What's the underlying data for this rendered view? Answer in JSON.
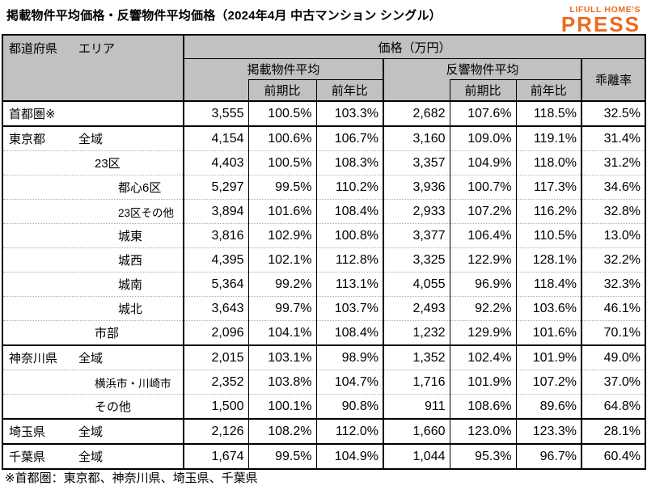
{
  "title": "掲載物件平均価格・反響物件平均価格（2024年4月 中古マンション シングル）",
  "logo": {
    "line1": "LIFULL HOME'S",
    "line2": "PRESS",
    "color": "#ed6a1c"
  },
  "footnote": "※首都圏：東京都、神奈川県、埼玉県、千葉県",
  "table": {
    "header": {
      "col_region": "都道府県",
      "col_area": "エリア",
      "price_group": "価格（万円）",
      "listed_group": "掲載物件平均",
      "response_group": "反響物件平均",
      "divergence": "乖離率",
      "mom": "前期比",
      "yoy": "前年比"
    },
    "header_bg": "#c1c1c1",
    "rows": [
      {
        "pref": "首都圏※",
        "area": "",
        "indent": 0,
        "group": true,
        "shrink": false,
        "values": [
          "3,555",
          "100.5%",
          "103.3%",
          "2,682",
          "107.6%",
          "118.5%",
          "32.5%"
        ]
      },
      {
        "pref": "東京都",
        "area": "全域",
        "indent": 1,
        "group": true,
        "shrink": false,
        "values": [
          "4,154",
          "100.6%",
          "106.7%",
          "3,160",
          "109.0%",
          "119.1%",
          "31.4%"
        ]
      },
      {
        "pref": "",
        "area": "23区",
        "indent": 2,
        "group": false,
        "shrink": false,
        "values": [
          "4,403",
          "100.5%",
          "108.3%",
          "3,357",
          "104.9%",
          "118.0%",
          "31.2%"
        ]
      },
      {
        "pref": "",
        "area": "都心6区",
        "indent": 3,
        "group": false,
        "shrink": false,
        "values": [
          "5,297",
          "99.5%",
          "110.2%",
          "3,936",
          "100.7%",
          "117.3%",
          "34.6%"
        ]
      },
      {
        "pref": "",
        "area": "23区その他",
        "indent": 3,
        "group": false,
        "shrink": true,
        "values": [
          "3,894",
          "101.6%",
          "108.4%",
          "2,933",
          "107.2%",
          "116.2%",
          "32.8%"
        ]
      },
      {
        "pref": "",
        "area": "城東",
        "indent": 3,
        "group": false,
        "shrink": false,
        "values": [
          "3,816",
          "102.9%",
          "100.8%",
          "3,377",
          "106.4%",
          "110.5%",
          "13.0%"
        ]
      },
      {
        "pref": "",
        "area": "城西",
        "indent": 3,
        "group": false,
        "shrink": false,
        "values": [
          "4,395",
          "102.1%",
          "112.8%",
          "3,325",
          "122.9%",
          "128.1%",
          "32.2%"
        ]
      },
      {
        "pref": "",
        "area": "城南",
        "indent": 3,
        "group": false,
        "shrink": false,
        "values": [
          "5,364",
          "99.2%",
          "113.1%",
          "4,055",
          "96.9%",
          "118.4%",
          "32.3%"
        ]
      },
      {
        "pref": "",
        "area": "城北",
        "indent": 3,
        "group": false,
        "shrink": false,
        "values": [
          "3,643",
          "99.7%",
          "103.7%",
          "2,493",
          "92.2%",
          "103.6%",
          "46.1%"
        ]
      },
      {
        "pref": "",
        "area": "市部",
        "indent": 2,
        "group": false,
        "shrink": false,
        "values": [
          "2,096",
          "104.1%",
          "108.4%",
          "1,232",
          "129.9%",
          "101.6%",
          "70.1%"
        ]
      },
      {
        "pref": "神奈川県",
        "area": "全域",
        "indent": 1,
        "group": true,
        "shrink": false,
        "values": [
          "2,015",
          "103.1%",
          "98.9%",
          "1,352",
          "102.4%",
          "101.9%",
          "49.0%"
        ]
      },
      {
        "pref": "",
        "area": "横浜市・川崎市",
        "indent": 2,
        "group": false,
        "shrink": true,
        "values": [
          "2,352",
          "103.8%",
          "104.7%",
          "1,716",
          "101.9%",
          "107.2%",
          "37.0%"
        ]
      },
      {
        "pref": "",
        "area": "その他",
        "indent": 2,
        "group": false,
        "shrink": false,
        "values": [
          "1,500",
          "100.1%",
          "90.8%",
          "911",
          "108.6%",
          "89.6%",
          "64.8%"
        ]
      },
      {
        "pref": "埼玉県",
        "area": "全域",
        "indent": 1,
        "group": true,
        "shrink": false,
        "values": [
          "2,126",
          "108.2%",
          "112.0%",
          "1,660",
          "123.0%",
          "123.3%",
          "28.1%"
        ]
      },
      {
        "pref": "千葉県",
        "area": "全域",
        "indent": 1,
        "group": true,
        "shrink": false,
        "values": [
          "1,674",
          "99.5%",
          "104.9%",
          "1,044",
          "95.3%",
          "96.7%",
          "60.4%"
        ]
      }
    ]
  },
  "chart_data": {
    "type": "table",
    "title": "掲載物件平均価格・反響物件平均価格（2024年4月 中古マンション シングル）",
    "unit": "万円",
    "columns": [
      "都道府県",
      "エリア",
      "掲載物件平均(万円)",
      "掲載前期比(%)",
      "掲載前年比(%)",
      "反響物件平均(万円)",
      "反響前期比(%)",
      "反響前年比(%)",
      "乖離率(%)"
    ],
    "rows": [
      [
        "首都圏※",
        "",
        3555,
        100.5,
        103.3,
        2682,
        107.6,
        118.5,
        32.5
      ],
      [
        "東京都",
        "全域",
        4154,
        100.6,
        106.7,
        3160,
        109.0,
        119.1,
        31.4
      ],
      [
        "東京都",
        "23区",
        4403,
        100.5,
        108.3,
        3357,
        104.9,
        118.0,
        31.2
      ],
      [
        "東京都",
        "都心6区",
        5297,
        99.5,
        110.2,
        3936,
        100.7,
        117.3,
        34.6
      ],
      [
        "東京都",
        "23区その他",
        3894,
        101.6,
        108.4,
        2933,
        107.2,
        116.2,
        32.8
      ],
      [
        "東京都",
        "城東",
        3816,
        102.9,
        100.8,
        3377,
        106.4,
        110.5,
        13.0
      ],
      [
        "東京都",
        "城西",
        4395,
        102.1,
        112.8,
        3325,
        122.9,
        128.1,
        32.2
      ],
      [
        "東京都",
        "城南",
        5364,
        99.2,
        113.1,
        4055,
        96.9,
        118.4,
        32.3
      ],
      [
        "東京都",
        "城北",
        3643,
        99.7,
        103.7,
        2493,
        92.2,
        103.6,
        46.1
      ],
      [
        "東京都",
        "市部",
        2096,
        104.1,
        108.4,
        1232,
        129.9,
        101.6,
        70.1
      ],
      [
        "神奈川県",
        "全域",
        2015,
        103.1,
        98.9,
        1352,
        102.4,
        101.9,
        49.0
      ],
      [
        "神奈川県",
        "横浜市・川崎市",
        2352,
        103.8,
        104.7,
        1716,
        101.9,
        107.2,
        37.0
      ],
      [
        "神奈川県",
        "その他",
        1500,
        100.1,
        90.8,
        911,
        108.6,
        89.6,
        64.8
      ],
      [
        "埼玉県",
        "全域",
        2126,
        108.2,
        112.0,
        1660,
        123.0,
        123.3,
        28.1
      ],
      [
        "千葉県",
        "全域",
        1674,
        99.5,
        104.9,
        1044,
        95.3,
        96.7,
        60.4
      ]
    ],
    "footnote": "※首都圏：東京都、神奈川県、埼玉県、千葉県"
  }
}
